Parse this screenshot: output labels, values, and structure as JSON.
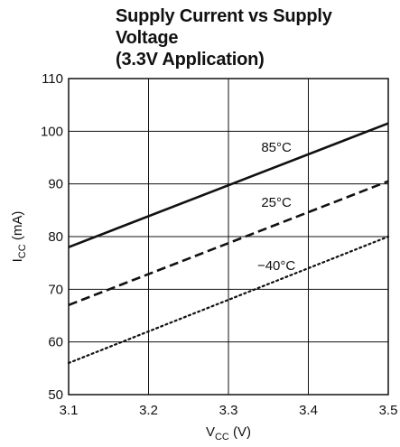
{
  "chart_data": {
    "type": "line",
    "title": "Supply Current vs Supply Voltage\n(3.3V Application)",
    "xlabel": {
      "main": "V",
      "sub": "CC",
      "unit": " (V)"
    },
    "ylabel": {
      "main": "I",
      "sub": "CC",
      "unit": " (mA)"
    },
    "xlim": [
      3.1,
      3.5
    ],
    "ylim": [
      50,
      110
    ],
    "x_ticks": [
      3.1,
      3.2,
      3.3,
      3.4,
      3.5
    ],
    "y_ticks": [
      50,
      60,
      70,
      80,
      90,
      100,
      110
    ],
    "x_tick_labels": [
      "3.1",
      "3.2",
      "3.3",
      "3.4",
      "3.5"
    ],
    "y_tick_labels": [
      "50",
      "60",
      "70",
      "80",
      "90",
      "100",
      "110"
    ],
    "grid": true,
    "series": [
      {
        "name": "85°C",
        "style": "solid",
        "x": [
          3.1,
          3.5
        ],
        "y": [
          78,
          101.5
        ],
        "label_at": [
          3.36,
          97
        ]
      },
      {
        "name": "25°C",
        "style": "dashed",
        "x": [
          3.1,
          3.5
        ],
        "y": [
          67,
          90.5
        ],
        "label_at": [
          3.36,
          86.5
        ]
      },
      {
        "name": "−40°C",
        "style": "dotted",
        "x": [
          3.1,
          3.5
        ],
        "y": [
          56,
          80
        ],
        "label_at": [
          3.36,
          74.5
        ]
      }
    ]
  }
}
